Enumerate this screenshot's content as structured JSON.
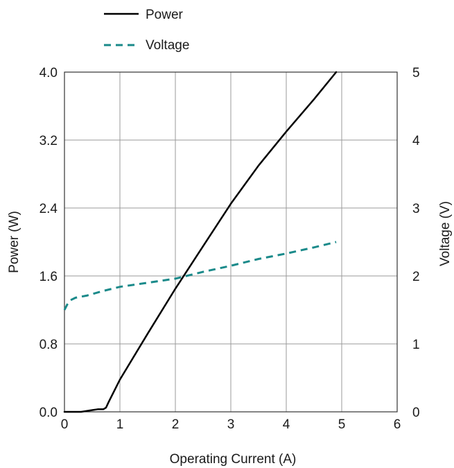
{
  "chart_data": {
    "type": "line",
    "xlabel": "Operating Current (A)",
    "ylabel": "Power (W)",
    "y2label": "Voltage (V)",
    "xlim": [
      0,
      6
    ],
    "ylim": [
      0,
      4.0
    ],
    "y2lim": [
      0,
      5
    ],
    "x_ticks": [
      "0",
      "1",
      "2",
      "3",
      "4",
      "5",
      "6"
    ],
    "y_ticks": [
      "0.0",
      "0.8",
      "1.6",
      "2.4",
      "3.2",
      "4.0"
    ],
    "y2_ticks": [
      "0",
      "1",
      "2",
      "3",
      "4",
      "5"
    ],
    "grid": true,
    "legend": "top-left",
    "series": [
      {
        "name": "Power",
        "axis": "left",
        "color": "#000000",
        "style": "solid",
        "x": [
          0.0,
          0.3,
          0.5,
          0.6,
          0.7,
          0.75,
          0.8,
          0.9,
          1.0,
          1.5,
          2.0,
          2.5,
          3.0,
          3.5,
          4.0,
          4.5,
          4.9
        ],
        "y": [
          0.0,
          0.0,
          0.02,
          0.03,
          0.03,
          0.05,
          0.12,
          0.25,
          0.38,
          0.92,
          1.45,
          1.95,
          2.45,
          2.9,
          3.3,
          3.68,
          4.0
        ]
      },
      {
        "name": "Voltage",
        "axis": "right",
        "color": "#1a8a8a",
        "style": "dashed",
        "x": [
          0.0,
          0.05,
          0.1,
          0.2,
          0.4,
          0.7,
          1.0,
          1.5,
          2.0,
          2.5,
          3.0,
          3.5,
          4.0,
          4.5,
          4.9
        ],
        "y": [
          1.5,
          1.58,
          1.64,
          1.68,
          1.71,
          1.78,
          1.84,
          1.9,
          1.96,
          2.06,
          2.15,
          2.25,
          2.33,
          2.42,
          2.5
        ]
      }
    ]
  }
}
